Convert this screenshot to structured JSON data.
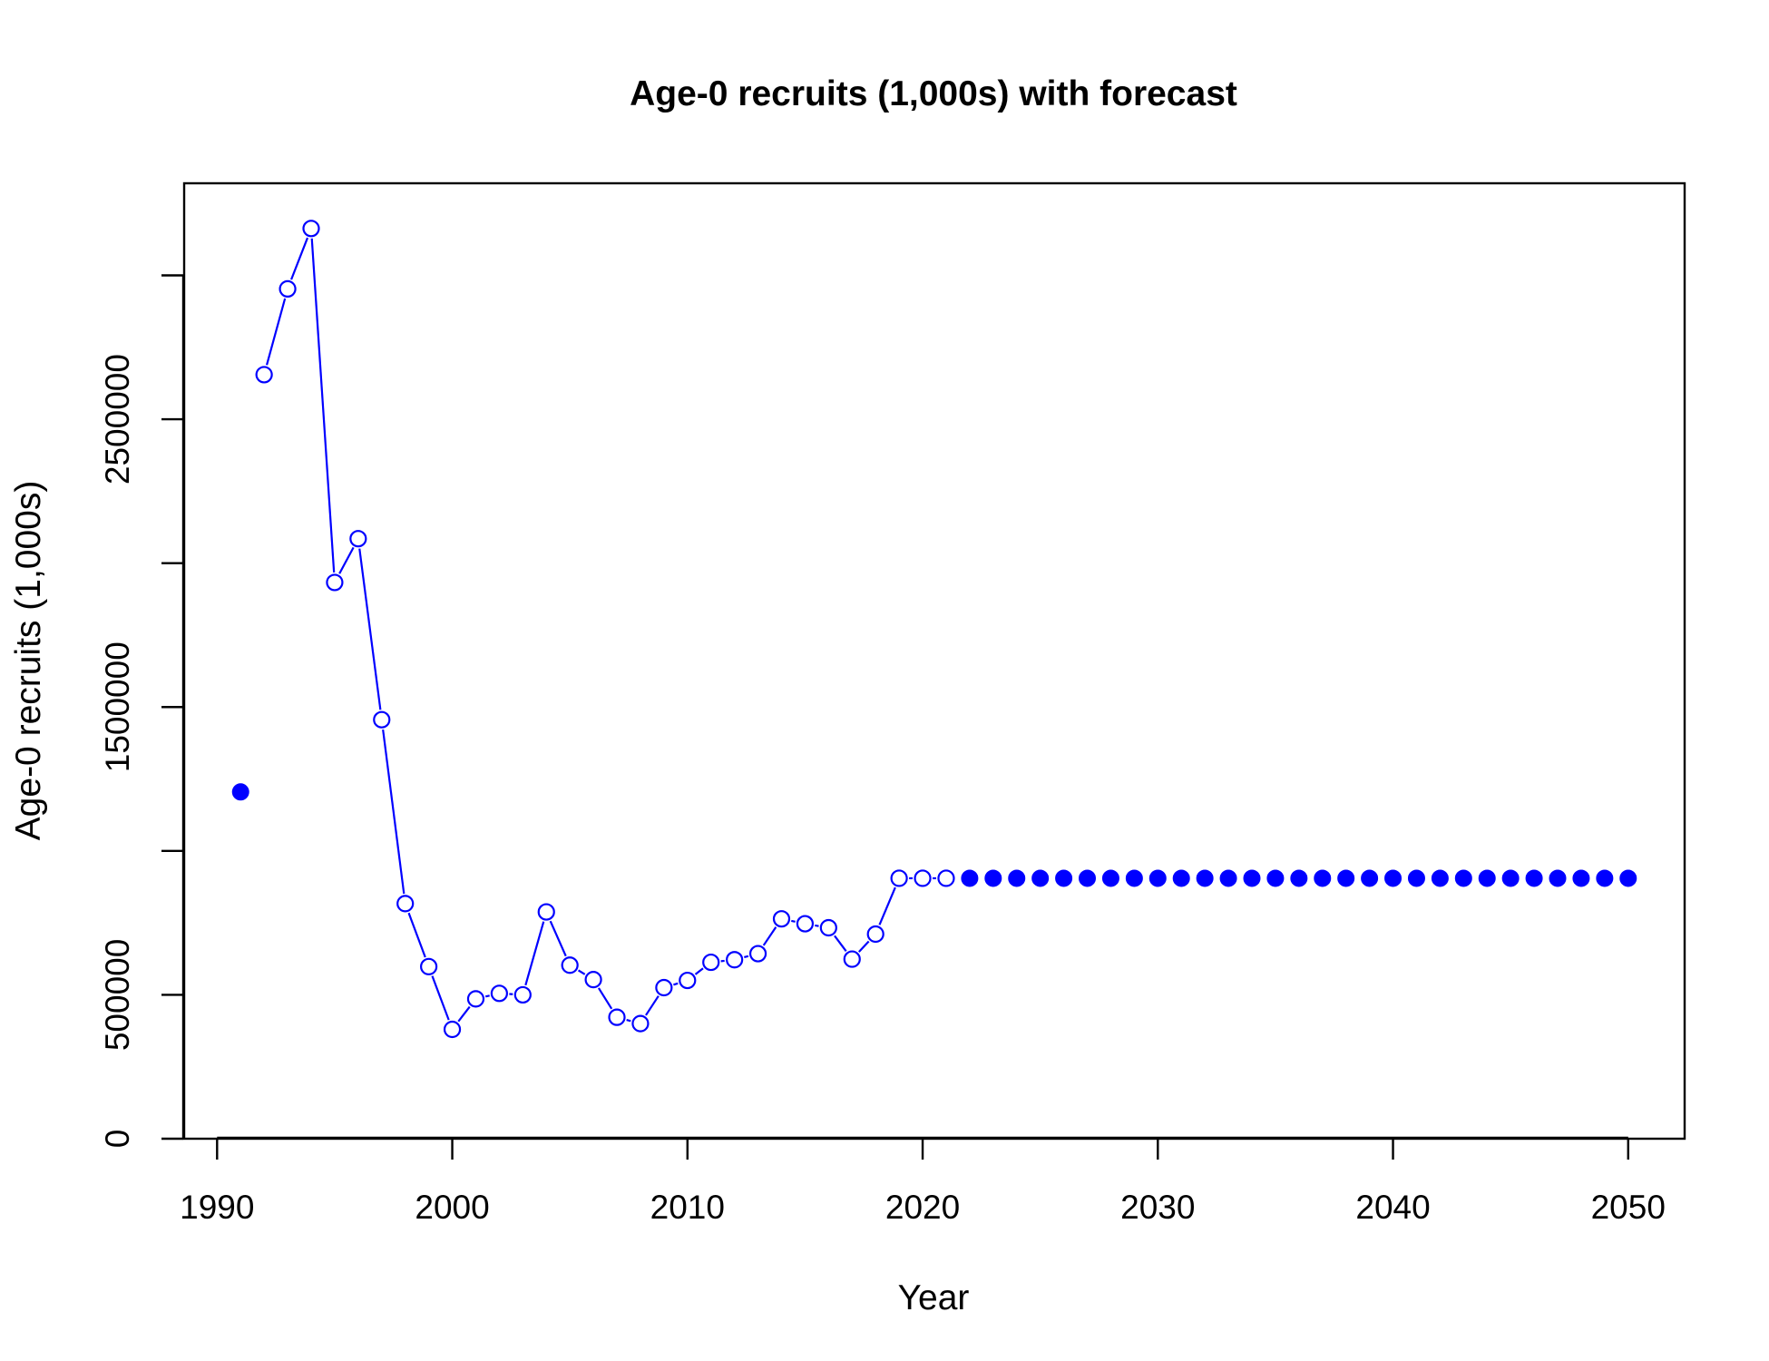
{
  "chart_data": {
    "type": "line",
    "title": "Age-0 recruits (1,000s) with forecast",
    "xlabel": "Year",
    "ylabel": "Age-0 recruits (1,000s)",
    "xlim": [
      1988.6,
      2052.4
    ],
    "ylim": [
      0,
      3320000
    ],
    "x_ticks": [
      1990,
      2000,
      2010,
      2020,
      2030,
      2040,
      2050
    ],
    "y_ticks": [
      0,
      500000,
      1000000,
      1500000,
      2000000,
      2500000,
      3000000
    ],
    "y_tick_labels": [
      "0",
      "500000",
      "",
      "1500000",
      "",
      "2500000",
      ""
    ],
    "grid": false,
    "legend": "none",
    "series": [
      {
        "style": "open-circles-line",
        "color": "#0000FF",
        "x": [
          1992,
          1993,
          1994,
          1995,
          1996,
          1997,
          1998,
          1999,
          2000,
          2001,
          2002,
          2003,
          2004,
          2005,
          2006,
          2007,
          2008,
          2009,
          2010,
          2011,
          2012,
          2013,
          2014,
          2015,
          2016,
          2017,
          2018,
          2019,
          2020,
          2021
        ],
        "y": [
          2655000,
          2953000,
          3163000,
          1933000,
          2085000,
          1456000,
          817000,
          598000,
          380000,
          486000,
          505000,
          500000,
          788000,
          603000,
          553000,
          422000,
          400000,
          525000,
          550000,
          613000,
          622000,
          643000,
          764000,
          747000,
          733000,
          624000,
          711000,
          905000,
          905000,
          905000
        ]
      },
      {
        "style": "filled-points",
        "color": "#0000FF",
        "x": [
          1991
        ],
        "y": [
          1205000
        ]
      },
      {
        "style": "filled-points",
        "color": "#0000FF",
        "x": [
          2022,
          2023,
          2024,
          2025,
          2026,
          2027,
          2028,
          2029,
          2030,
          2031,
          2032,
          2033,
          2034,
          2035,
          2036,
          2037,
          2038,
          2039,
          2040,
          2041,
          2042,
          2043,
          2044,
          2045,
          2046,
          2047,
          2048,
          2049,
          2050
        ],
        "y": [
          905000,
          905000,
          905000,
          905000,
          905000,
          905000,
          905000,
          905000,
          905000,
          905000,
          905000,
          905000,
          905000,
          905000,
          905000,
          905000,
          905000,
          905000,
          905000,
          905000,
          905000,
          905000,
          905000,
          905000,
          905000,
          905000,
          905000,
          905000,
          905000
        ]
      }
    ]
  }
}
